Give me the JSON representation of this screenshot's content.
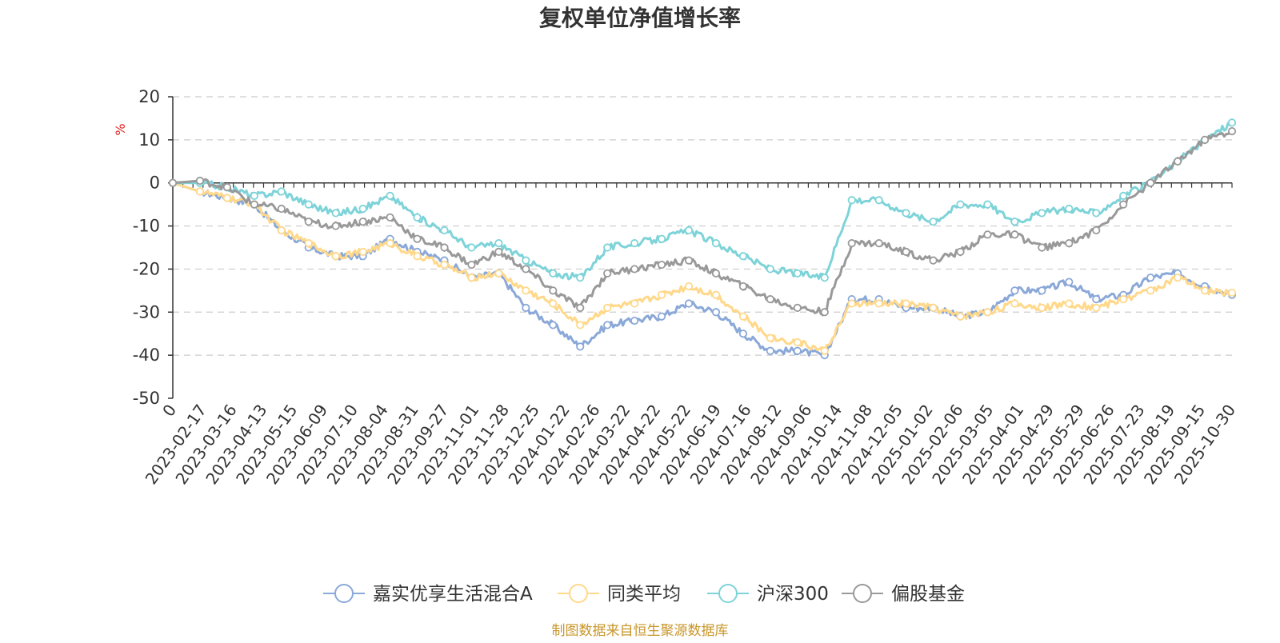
{
  "chart_data": {
    "type": "line",
    "title": "复权单位净值增长率",
    "ylabel": "%",
    "xlabel": "",
    "ylim": [
      -50,
      20
    ],
    "yticks": [
      20,
      10,
      0,
      -10,
      -20,
      -30,
      -40,
      -50
    ],
    "grid": "horizontal dashed",
    "legend_position": "bottom-center",
    "x_tick_labels": [
      "0",
      "2023-02-17",
      "2023-03-16",
      "2023-04-13",
      "2023-05-15",
      "2023-06-09",
      "2023-07-10",
      "2023-08-04",
      "2023-08-31",
      "2023-09-27",
      "2023-11-01",
      "2023-11-28",
      "2023-12-25",
      "2024-01-22",
      "2024-02-26",
      "2024-03-22",
      "2024-04-22",
      "2024-05-22",
      "2024-06-19",
      "2024-07-16",
      "2024-08-12",
      "2024-09-06",
      "2024-10-14",
      "2024-11-08",
      "2024-12-05",
      "2025-01-02",
      "2025-02-06",
      "2025-03-05",
      "2025-04-01",
      "2025-04-29",
      "2025-05-29",
      "2025-06-26",
      "2025-07-23",
      "2025-08-19",
      "2025-09-15",
      "2025-10-30"
    ],
    "series": [
      {
        "name": "嘉实优享生活混合A",
        "color": "#8aa8d8",
        "values": [
          0,
          -2,
          -3.5,
          -5,
          -11,
          -15,
          -17,
          -17,
          -13,
          -16,
          -18,
          -22,
          -21,
          -29,
          -33,
          -38,
          -33,
          -32,
          -31,
          -28,
          -30,
          -35,
          -39,
          -39,
          -40,
          -27,
          -27,
          -29,
          -29,
          -31,
          -30,
          -25,
          -25,
          -23,
          -27,
          -26,
          -22,
          -21,
          -24,
          -26
        ]
      },
      {
        "name": "同类平均",
        "color": "#ffd88a",
        "values": [
          0,
          -2,
          -3.5,
          -5,
          -11,
          -14,
          -17,
          -16,
          -14,
          -17,
          -19,
          -22,
          -21,
          -25,
          -28,
          -33,
          -29,
          -28,
          -26,
          -24,
          -26,
          -31,
          -36,
          -37,
          -39,
          -28,
          -28,
          -28,
          -29,
          -31,
          -30,
          -28,
          -29,
          -28,
          -29,
          -27,
          -25,
          -22,
          -25,
          -25.5
        ]
      },
      {
        "name": "沪深300",
        "color": "#7dd3d8",
        "values": [
          0,
          0,
          -1,
          -3,
          -2,
          -5,
          -7,
          -6,
          -3,
          -8,
          -11,
          -15,
          -14,
          -18,
          -21,
          -22,
          -15,
          -14,
          -13,
          -11,
          -14,
          -17,
          -20,
          -21,
          -22,
          -4,
          -4,
          -7,
          -9,
          -5,
          -5,
          -9,
          -7,
          -6,
          -7,
          -3,
          0,
          5,
          10,
          14
        ]
      },
      {
        "name": "偏股基金",
        "color": "#999999",
        "values": [
          0,
          0.5,
          -1,
          -5,
          -6,
          -9,
          -10,
          -9,
          -8,
          -13,
          -15,
          -19,
          -16,
          -20,
          -25,
          -29,
          -21,
          -20,
          -19,
          -18,
          -21,
          -24,
          -27,
          -29,
          -30,
          -14,
          -14,
          -16,
          -18,
          -16,
          -12,
          -12,
          -15,
          -14,
          -11,
          -5,
          0,
          5,
          10,
          12
        ]
      }
    ]
  },
  "footer": {
    "source": "制图数据来自恒生聚源数据库",
    "source_color": "#c8962a"
  }
}
